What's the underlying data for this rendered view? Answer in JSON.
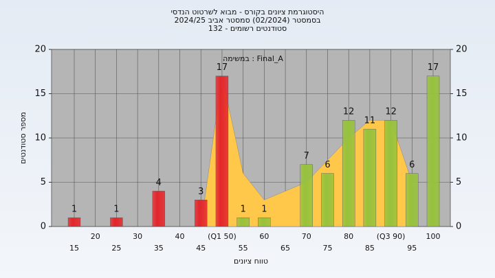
{
  "chart_data": {
    "type": "bar",
    "title": "היסטוגרמת ציונים בקורס - מבוא לשרטוט הנדסי",
    "subtitle": "בסמסטר  (02/2024)  סמסטר אביב 2024/25",
    "subtitle2": "סטודנטים רשומים - 132",
    "annotation": "במשימה : Final_A",
    "ylabel": "מספר סטודנטים",
    "xlabel": "טווח ציונים",
    "categories": [
      "15",
      "20",
      "25",
      "30",
      "35",
      "40",
      "45",
      "(Q1 50)",
      "55",
      "60",
      "65",
      "70",
      "75",
      "80",
      "85",
      "(Q3 90)",
      "95",
      "100"
    ],
    "values": [
      1,
      0,
      1,
      0,
      4,
      0,
      3,
      17,
      1,
      1,
      0,
      7,
      6,
      12,
      11,
      12,
      6,
      17
    ],
    "colors": [
      "#e3262b",
      "#e3262b",
      "#e3262b",
      "#e3262b",
      "#e3262b",
      "#e3262b",
      "#e3262b",
      "#e3262b",
      "#97c23c",
      "#97c23c",
      "#97c23c",
      "#97c23c",
      "#97c23c",
      "#97c23c",
      "#97c23c",
      "#97c23c",
      "#97c23c",
      "#97c23c"
    ],
    "area": {
      "color": "#ffc84a",
      "values": [
        null,
        null,
        null,
        null,
        null,
        null,
        0,
        17,
        6,
        3,
        4,
        5,
        7.5,
        10,
        12,
        12,
        5,
        null
      ]
    },
    "ylim": [
      0,
      20
    ],
    "yticks": [
      0,
      5,
      10,
      15,
      20
    ],
    "y2lim": [
      0,
      20
    ],
    "y2ticks": [
      0,
      5,
      10,
      15,
      20
    ],
    "grid": true
  }
}
